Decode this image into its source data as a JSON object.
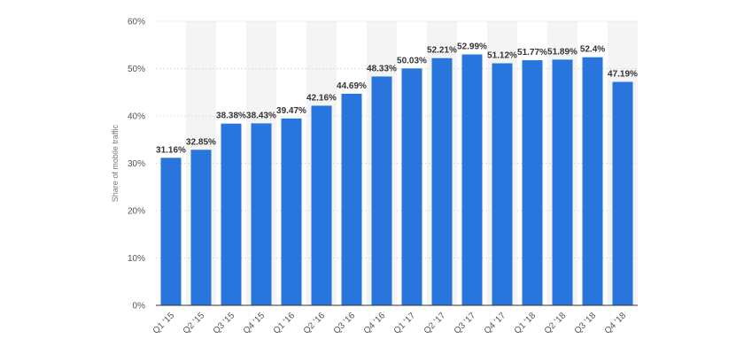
{
  "chart_data": {
    "type": "bar",
    "ylabel": "Share of mobile traffic",
    "xlabel": "",
    "ylim": [
      0,
      60
    ],
    "yticks": [
      0,
      10,
      20,
      30,
      40,
      50,
      60
    ],
    "ytick_labels": [
      "0%",
      "10%",
      "20%",
      "30%",
      "40%",
      "50%",
      "60%"
    ],
    "categories": [
      "Q1 '15",
      "Q2 '15",
      "Q3 '15",
      "Q4 '15",
      "Q1 '16",
      "Q2 '16",
      "Q3 '16",
      "Q4 '16",
      "Q1 '17",
      "Q2 '17",
      "Q3 '17",
      "Q4 '17",
      "Q1 '18",
      "Q2 '18",
      "Q3 '18",
      "Q4 '18"
    ],
    "values": [
      31.16,
      32.85,
      38.38,
      38.43,
      39.47,
      42.16,
      44.69,
      48.33,
      50.03,
      52.21,
      52.99,
      51.12,
      51.77,
      51.89,
      52.4,
      47.19
    ],
    "value_labels": [
      "31.16%",
      "32.85%",
      "38.38%",
      "38.43%",
      "39.47%",
      "42.16%",
      "44.69%",
      "48.33%",
      "50.03%",
      "52.21%",
      "52.99%",
      "51.12%",
      "51.77%",
      "51.89%",
      "52.4%",
      "47.19%"
    ],
    "grid": true,
    "colors": {
      "bar": "#2876dd",
      "band": "#f4f4f4",
      "grid": "#e0e0e0",
      "axis": "#333333"
    }
  }
}
